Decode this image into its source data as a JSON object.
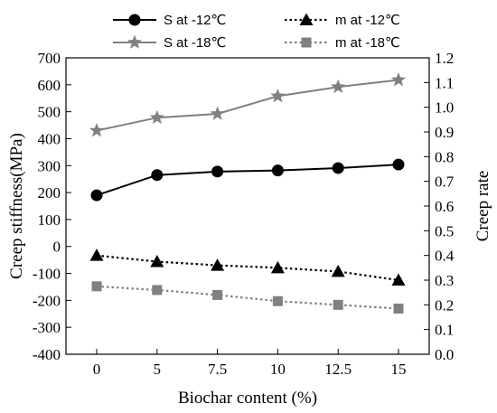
{
  "chart_data": {
    "type": "line",
    "x_categories": [
      "0",
      "5",
      "7.5",
      "10",
      "12.5",
      "15"
    ],
    "xlabel": "Biochar content (%)",
    "ylabel_left": "Creep stiffness(MPa)",
    "ylabel_right": "Creep rate",
    "ylim_left": [
      -400,
      700
    ],
    "ylim_right": [
      0.0,
      1.2
    ],
    "yticks_left": [
      "-400",
      "-300",
      "-200",
      "-100",
      "0",
      "100",
      "200",
      "300",
      "400",
      "500",
      "600",
      "700"
    ],
    "yticks_right": [
      "0.0",
      "0.1",
      "0.2",
      "0.3",
      "0.4",
      "0.5",
      "0.6",
      "0.7",
      "0.8",
      "0.9",
      "1.0",
      "1.1",
      "1.2"
    ],
    "grid": false,
    "legend_position": "top",
    "series": [
      {
        "name": "S at -12℃",
        "axis": "left",
        "marker": "circle",
        "line": "solid",
        "color": "#000000",
        "values": [
          190,
          265,
          278,
          282,
          291,
          304
        ]
      },
      {
        "name": "m at -12℃",
        "axis": "right",
        "marker": "triangle",
        "line": "dotted",
        "color": "#000000",
        "values": [
          0.4,
          0.375,
          0.36,
          0.35,
          0.335,
          0.3
        ]
      },
      {
        "name": "S at -18℃",
        "axis": "left",
        "marker": "star",
        "line": "solid",
        "color": "#808080",
        "values": [
          430,
          478,
          492,
          558,
          592,
          618
        ]
      },
      {
        "name": "m at -18℃",
        "axis": "right",
        "marker": "square",
        "line": "dotted",
        "color": "#808080",
        "values": [
          0.275,
          0.26,
          0.24,
          0.215,
          0.2,
          0.185
        ]
      }
    ]
  }
}
